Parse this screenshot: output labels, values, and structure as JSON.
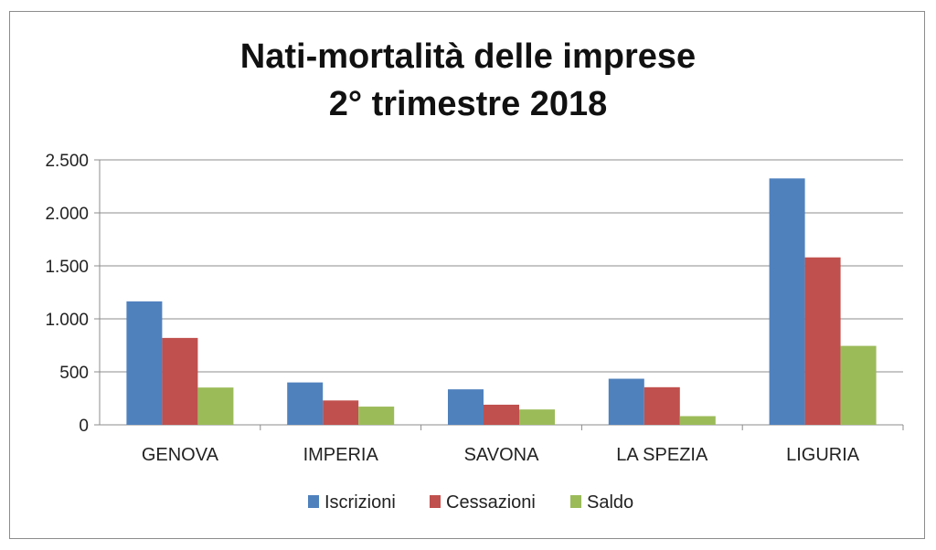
{
  "chart_data": {
    "type": "bar",
    "title_line1": "Nati-mortalità delle imprese",
    "title_line2": "2° trimestre 2018",
    "categories": [
      "GENOVA",
      "IMPERIA",
      "SAVONA",
      "LA SPEZIA",
      "LIGURIA"
    ],
    "series": [
      {
        "name": "Iscrizioni",
        "color": "#4f81bd",
        "values": [
          1165,
          400,
          335,
          435,
          2325
        ]
      },
      {
        "name": "Cessazioni",
        "color": "#c0504d",
        "values": [
          820,
          230,
          190,
          355,
          1580
        ]
      },
      {
        "name": "Saldo",
        "color": "#9bbb59",
        "values": [
          352,
          172,
          145,
          82,
          745
        ]
      }
    ],
    "y_ticks": [
      0,
      500,
      1000,
      1500,
      2000,
      2500
    ],
    "y_tick_labels": [
      "0",
      "500",
      "1.000",
      "1.500",
      "2.000",
      "2.500"
    ],
    "ylim": [
      0,
      2500
    ],
    "grid": true,
    "legend_position": "bottom",
    "xlabel": "",
    "ylabel": ""
  }
}
